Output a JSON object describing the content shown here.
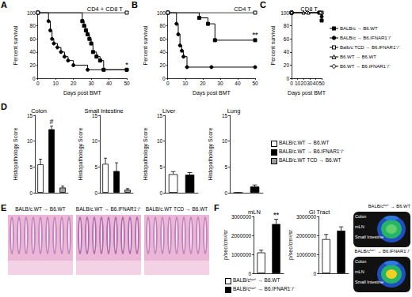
{
  "panel_labels": [
    "A",
    "B",
    "C",
    "D",
    "E",
    "F"
  ],
  "chart_data": [
    {
      "type": "line",
      "title": "CD4 + CD8 T",
      "x_label": "Days post BMT",
      "y_label": "Percent survival",
      "xlim": [
        0,
        50
      ],
      "xticks": [
        0,
        10,
        20,
        30,
        40,
        50
      ],
      "ylim": [
        0,
        100
      ],
      "yticks": [
        0,
        20,
        40,
        60,
        80,
        100
      ],
      "line_style": "step",
      "series": [
        {
          "name": "BALB/c → B6.WT",
          "color": "#000000",
          "marker": "filled-square",
          "x": [
            0,
            25,
            26,
            27,
            28,
            29,
            30,
            31,
            33,
            35,
            37,
            50
          ],
          "values": [
            100,
            87,
            80,
            73,
            67,
            60,
            53,
            40,
            33,
            27,
            13,
            13
          ]
        },
        {
          "name": "BALB/c → B6.IFNAR1⁻/⁻",
          "color": "#000000",
          "marker": "filled-circle",
          "x": [
            0,
            6,
            7,
            8,
            9,
            11,
            13,
            15,
            17,
            20,
            28,
            50
          ],
          "values": [
            100,
            87,
            73,
            60,
            53,
            47,
            40,
            33,
            27,
            20,
            13,
            13
          ]
        },
        {
          "name": "Balb/c TCD → B6.IFNAR1⁻/⁻",
          "color": "#000000",
          "marker": "open-square",
          "x": [
            0,
            50
          ],
          "values": [
            100,
            100
          ]
        }
      ],
      "annotations": [
        {
          "text": "*",
          "x": 50,
          "y": 13
        }
      ]
    },
    {
      "type": "line",
      "title": "CD4 T",
      "x_label": "Days post BMT",
      "y_label": "Percent survival",
      "xlim": [
        0,
        50
      ],
      "xticks": [
        0,
        10,
        20,
        30,
        40,
        50
      ],
      "ylim": [
        0,
        100
      ],
      "yticks": [
        0,
        20,
        40,
        60,
        80,
        100
      ],
      "line_style": "step",
      "series": [
        {
          "name": "BALB/c → B6.WT",
          "color": "#000000",
          "marker": "filled-square",
          "x": [
            0,
            18,
            23,
            27,
            50
          ],
          "values": [
            100,
            92,
            83,
            58,
            58
          ]
        },
        {
          "name": "BALB/c → B6.IFNAR1⁻/⁻",
          "color": "#000000",
          "marker": "filled-circle",
          "x": [
            0,
            5,
            6,
            7,
            8,
            9,
            11,
            25,
            50
          ],
          "values": [
            100,
            83,
            67,
            50,
            42,
            33,
            17,
            17,
            17
          ]
        },
        {
          "name": "Balb/c TCD → B6.IFNAR1⁻/⁻",
          "color": "#000000",
          "marker": "open-square",
          "x": [
            0,
            50
          ],
          "values": [
            100,
            100
          ]
        }
      ],
      "annotations": [
        {
          "text": "**",
          "x": 50,
          "y": 58
        }
      ]
    },
    {
      "type": "line",
      "title": "CD8 T",
      "x_label": "Days post BMT",
      "y_label": "Percent survival",
      "xlim": [
        0,
        50
      ],
      "xticks": [
        0,
        10,
        20,
        30,
        40,
        50
      ],
      "ylim": [
        0,
        100
      ],
      "yticks": [
        0,
        20,
        40,
        60,
        80,
        100
      ],
      "line_style": "step",
      "legend": "right",
      "series": [
        {
          "name": "BALB/c → B6.WT",
          "color": "#000000",
          "marker": "filled-square",
          "x": [
            0,
            46,
            50
          ],
          "values": [
            100,
            100,
            88
          ]
        },
        {
          "name": "BALB/c → B6.IFNAR1⁻/⁻",
          "color": "#000000",
          "marker": "filled-circle",
          "x": [
            0,
            46,
            50
          ],
          "values": [
            100,
            100,
            94
          ]
        },
        {
          "name": "Balb/c TCD → B6.IFNAR1⁻/⁻",
          "color": "#000000",
          "marker": "open-square",
          "x": [
            0,
            50
          ],
          "values": [
            100,
            100
          ]
        },
        {
          "name": "B6.WT → B6.WT",
          "color": "#000000",
          "marker": "open-triangle",
          "x": [
            0,
            20,
            28,
            50
          ],
          "values": [
            100,
            100,
            100,
            100
          ]
        },
        {
          "name": "B6.WT → B6.IFNAR1⁻/⁻",
          "color": "#000000",
          "marker": "open-diamond",
          "x": [
            0,
            25,
            48
          ],
          "values": [
            100,
            100,
            100
          ]
        }
      ]
    },
    {
      "type": "bar",
      "title": "Colon",
      "y_label": "Histopathology Score",
      "categories": [
        "BALB/c.WT → B6.WT",
        "BALB/c.WT → B6.IFNAR1⁻/⁻",
        "BALB/c.WT TCD → B6.WT"
      ],
      "values": [
        5.5,
        12.3,
        1.0
      ],
      "errors": [
        1.0,
        0.6,
        0.3
      ],
      "colors": [
        "#ffffff",
        "#000000",
        "#9e9e9e"
      ],
      "ylim": [
        0,
        15
      ],
      "yticks": [
        0,
        5,
        10,
        15
      ],
      "tick_labels": "y",
      "legend": "right",
      "annotations": [
        {
          "text": "#",
          "index": 1
        }
      ]
    },
    {
      "type": "bar",
      "title": "Small Intestine",
      "y_label": "Histopathology Score",
      "categories": [
        "BALB/c.WT → B6.WT",
        "BALB/c.WT → B6.IFNAR1⁻/⁻",
        "BALB/c.WT TCD → B6.WT"
      ],
      "values": [
        5.6,
        4.2,
        0.6
      ],
      "errors": [
        1.1,
        1.6,
        0.2
      ],
      "colors": [
        "#ffffff",
        "#000000",
        "#9e9e9e"
      ],
      "ylim": [
        0,
        15
      ],
      "yticks": [
        0,
        5,
        10,
        15
      ],
      "tick_labels": "y"
    },
    {
      "type": "bar",
      "title": "Liver",
      "y_label": "Histopathology Score",
      "categories": [
        "BALB/c.WT → B6.WT",
        "BALB/c.WT → B6.IFNAR1⁻/⁻"
      ],
      "values": [
        3.6,
        3.5
      ],
      "errors": [
        0.5,
        0.4
      ],
      "colors": [
        "#ffffff",
        "#000000"
      ],
      "ylim": [
        0,
        15
      ],
      "yticks": [
        0,
        5,
        10,
        15
      ],
      "tick_labels": "y"
    },
    {
      "type": "bar",
      "title": "Lung",
      "y_label": "Histopathology Score",
      "categories": [
        "BALB/c.WT → B6.WT",
        "BALB/c.WT → B6.IFNAR1⁻/⁻"
      ],
      "values": [
        0,
        1.2
      ],
      "errors": [
        0,
        0.3
      ],
      "colors": [
        "#ffffff",
        "#000000"
      ],
      "ylim": [
        0,
        15
      ],
      "yticks": [
        0,
        5,
        10,
        15
      ],
      "tick_labels": "y"
    },
    {
      "type": "bar",
      "title": "mLN",
      "y_label": "p/sec/cm²/sr",
      "categories": [
        "BALB/cˡᵘᶜ⁺ → B6.WT",
        "BALB/cˡᵘᶜ⁺ → B6.IFNAR1⁻/⁻"
      ],
      "values": [
        1100000,
        2600000
      ],
      "errors": [
        120000,
        250000
      ],
      "colors": [
        "#ffffff",
        "#000000"
      ],
      "ylim": [
        0,
        3000000
      ],
      "yticks": [
        0,
        1000000,
        2000000,
        3000000
      ],
      "tick_labels": "y",
      "legend": "bottom",
      "annotations": [
        {
          "text": "**",
          "index": 1
        }
      ]
    },
    {
      "type": "bar",
      "title": "GI Tract",
      "y_label": "p/sec/cm²/sr",
      "categories": [
        "BALB/cˡᵘᶜ⁺ → B6.WT",
        "BALB/cˡᵘᶜ⁺ → B6.IFNAR1⁻/⁻"
      ],
      "values": [
        1800000,
        2250000
      ],
      "errors": [
        250000,
        200000
      ],
      "colors": [
        "#ffffff",
        "#000000"
      ],
      "ylim": [
        0,
        3000000
      ],
      "yticks": [
        0,
        1000000,
        2000000,
        3000000
      ],
      "tick_labels": "y"
    }
  ],
  "histology": {
    "captions": [
      "BALB/c.WT → B6.WT",
      "BALB/c.WT → B6.IFNAR1⁻/⁻",
      "BALB/c.WT TCD → B6.WT"
    ]
  },
  "imaging": {
    "captions": [
      "BALB/cˡᵘᶜ⁺ → B6.WT",
      "BALB/cˡᵘᶜ⁺ → B6.IFNAR1⁻/⁻"
    ],
    "organ_labels": [
      "Colon",
      "mLN",
      "Small Intestine"
    ]
  }
}
